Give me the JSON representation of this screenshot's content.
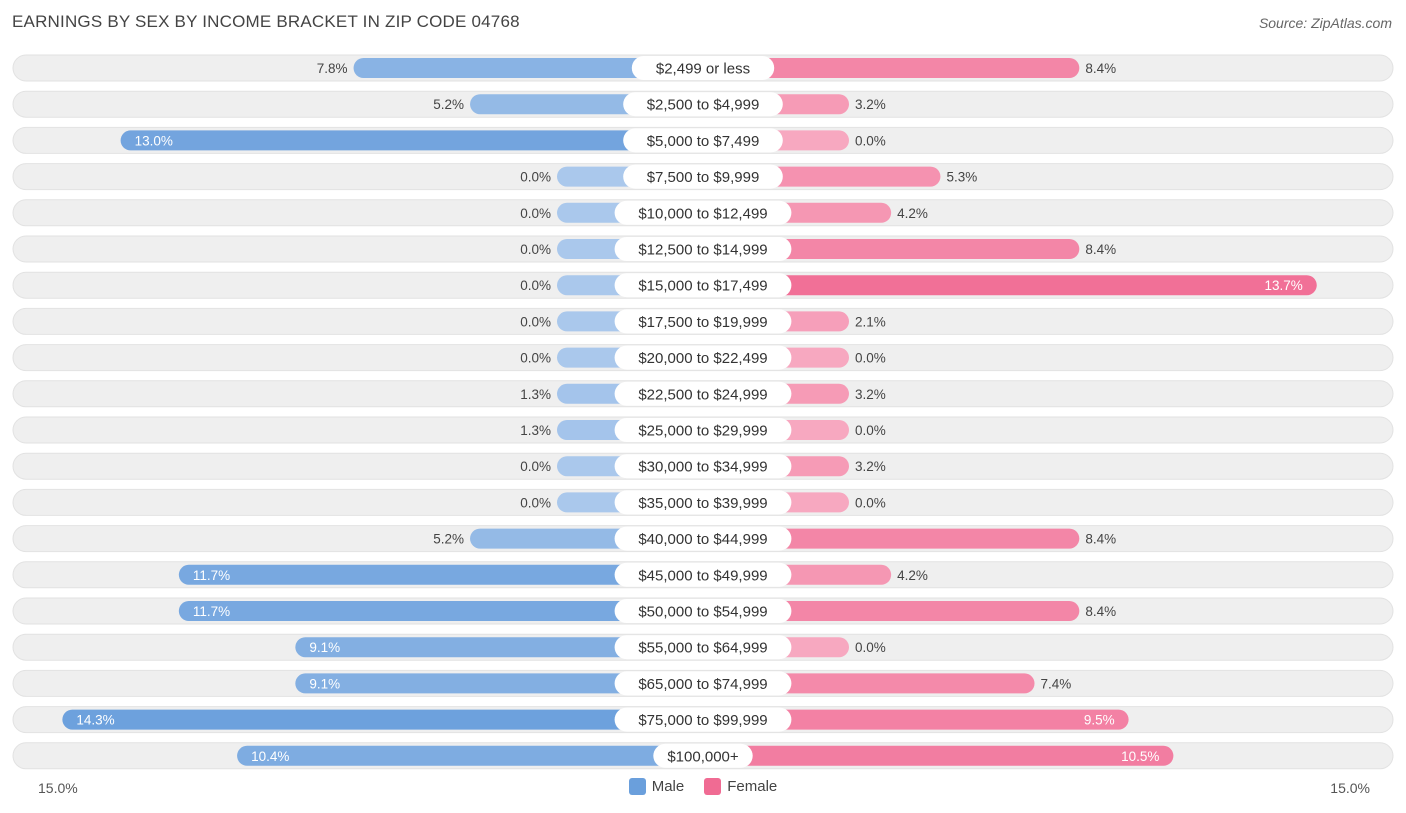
{
  "header": {
    "title": "EARNINGS BY SEX BY INCOME BRACKET IN ZIP CODE 04768",
    "source": "Source: ZipAtlas.com"
  },
  "legend": {
    "male_label": "Male",
    "female_label": "Female"
  },
  "axis": {
    "left_label": "15.0%",
    "right_label": "15.0%"
  },
  "colors": {
    "male_strong": "#6a9fdc",
    "male_light": "#aac8ec",
    "female_strong": "#f06b93",
    "female_light": "#f7a8c0"
  },
  "chart_data": {
    "type": "bar",
    "orientation": "horizontal-diverging",
    "title": "EARNINGS BY SEX BY INCOME BRACKET IN ZIP CODE 04768",
    "xlim": [
      -15.0,
      15.0
    ],
    "value_unit": "%",
    "categories": [
      "$2,499 or less",
      "$2,500 to $4,999",
      "$5,000 to $7,499",
      "$7,500 to $9,999",
      "$10,000 to $12,499",
      "$12,500 to $14,999",
      "$15,000 to $17,499",
      "$17,500 to $19,999",
      "$20,000 to $22,499",
      "$22,500 to $24,999",
      "$25,000 to $29,999",
      "$30,000 to $34,999",
      "$35,000 to $39,999",
      "$40,000 to $44,999",
      "$45,000 to $49,999",
      "$50,000 to $54,999",
      "$55,000 to $64,999",
      "$65,000 to $74,999",
      "$75,000 to $99,999",
      "$100,000+"
    ],
    "series": [
      {
        "name": "Male",
        "values": [
          7.8,
          5.2,
          13.0,
          0.0,
          0.0,
          0.0,
          0.0,
          0.0,
          0.0,
          1.3,
          1.3,
          0.0,
          0.0,
          5.2,
          11.7,
          11.7,
          9.1,
          9.1,
          14.3,
          10.4
        ]
      },
      {
        "name": "Female",
        "values": [
          8.4,
          3.2,
          0.0,
          5.3,
          4.2,
          8.4,
          13.7,
          2.1,
          0.0,
          3.2,
          0.0,
          3.2,
          0.0,
          8.4,
          4.2,
          8.4,
          0.0,
          7.4,
          9.5,
          10.5
        ]
      }
    ]
  }
}
